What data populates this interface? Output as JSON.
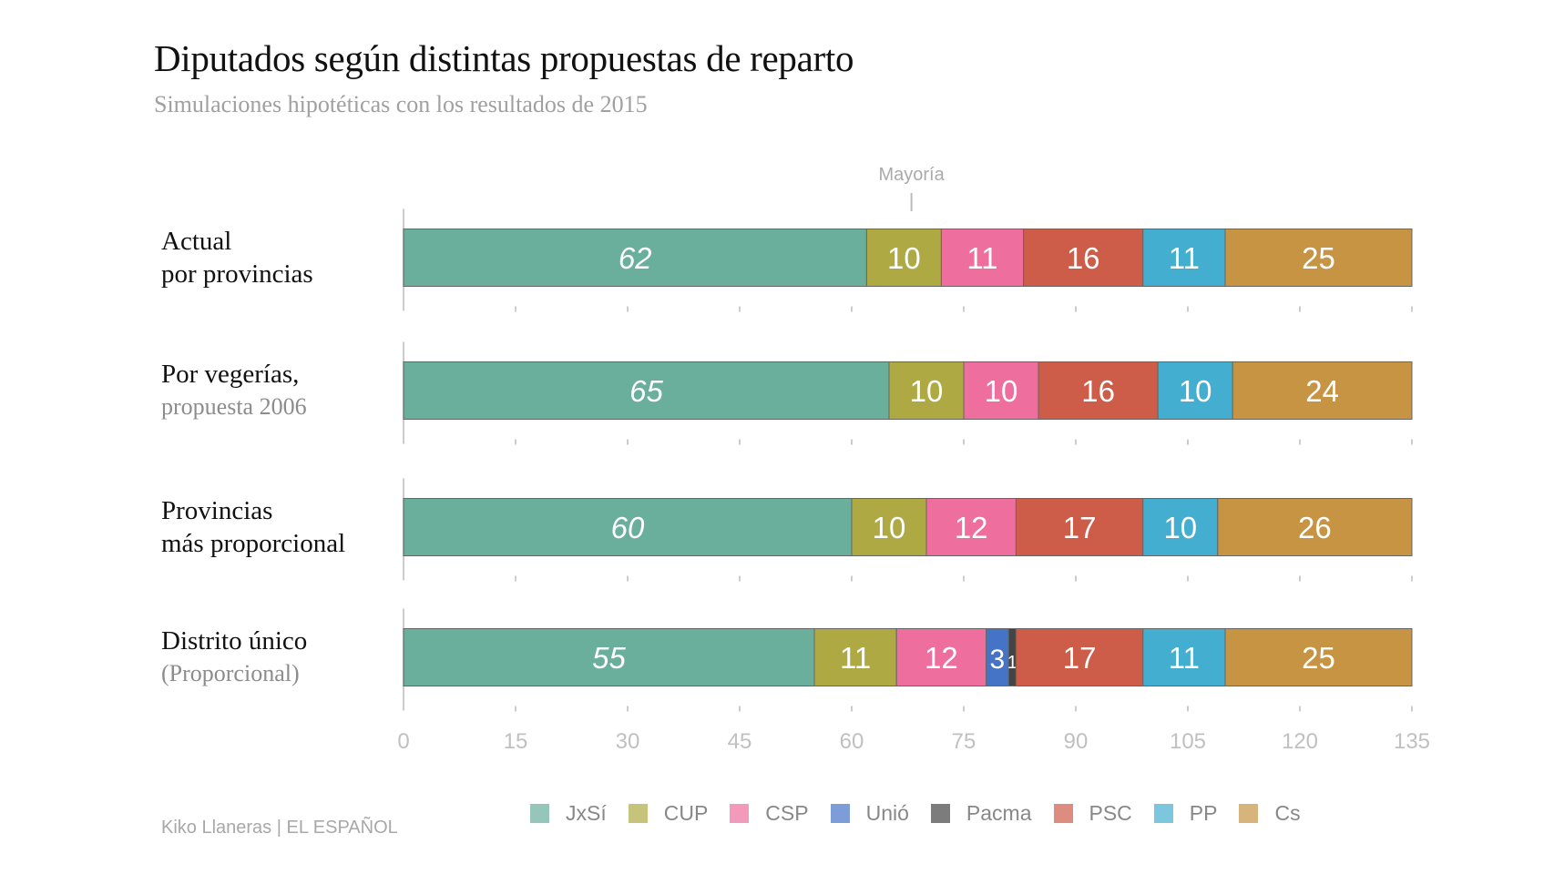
{
  "title": "Diputados según distintas propuestas de reparto",
  "subtitle": "Simulaciones hipotéticas con los resultados de 2015",
  "source": "Kiko Llaneras  |  EL ESPAÑOL",
  "chart_data": {
    "type": "bar",
    "orientation": "horizontal",
    "stacked": true,
    "title": "Diputados según distintas propuestas de reparto",
    "subtitle": "Simulaciones hipotéticas con los resultados de 2015",
    "categories": [
      {
        "line1": "Actual",
        "line2": "por provincias",
        "line2_gray": false
      },
      {
        "line1": "Por vegerías,",
        "line2": "propuesta 2006",
        "line2_gray": true
      },
      {
        "line1": "Provincias",
        "line2": "más proporcional",
        "line2_gray": false
      },
      {
        "line1": "Distrito único",
        "line2": "(Proporcional)",
        "line2_gray": true
      }
    ],
    "series": [
      {
        "name": "JxSí",
        "color": "#6aae9c",
        "values": [
          62,
          65,
          60,
          55
        ]
      },
      {
        "name": "CUP",
        "color": "#aea943",
        "values": [
          10,
          10,
          10,
          11
        ]
      },
      {
        "name": "CSP",
        "color": "#ee6f9e",
        "values": [
          11,
          10,
          12,
          12
        ]
      },
      {
        "name": "Unió",
        "color": "#4573c6",
        "values": [
          0,
          0,
          0,
          3
        ]
      },
      {
        "name": "Pacma",
        "color": "#444444",
        "values": [
          0,
          0,
          0,
          1
        ]
      },
      {
        "name": "PSC",
        "color": "#cd5c49",
        "values": [
          16,
          16,
          17,
          17
        ]
      },
      {
        "name": "PP",
        "color": "#44aed0",
        "values": [
          11,
          10,
          10,
          11
        ]
      },
      {
        "name": "Cs",
        "color": "#c69443",
        "values": [
          25,
          24,
          26,
          25
        ]
      }
    ],
    "xlim": [
      0,
      135
    ],
    "xticks": [
      "0",
      "15",
      "30",
      "45",
      "60",
      "75",
      "90",
      "105",
      "120",
      "135"
    ],
    "annotation": {
      "label": "Mayoría",
      "value": 68
    },
    "legend_position": "bottom",
    "grid": false
  }
}
